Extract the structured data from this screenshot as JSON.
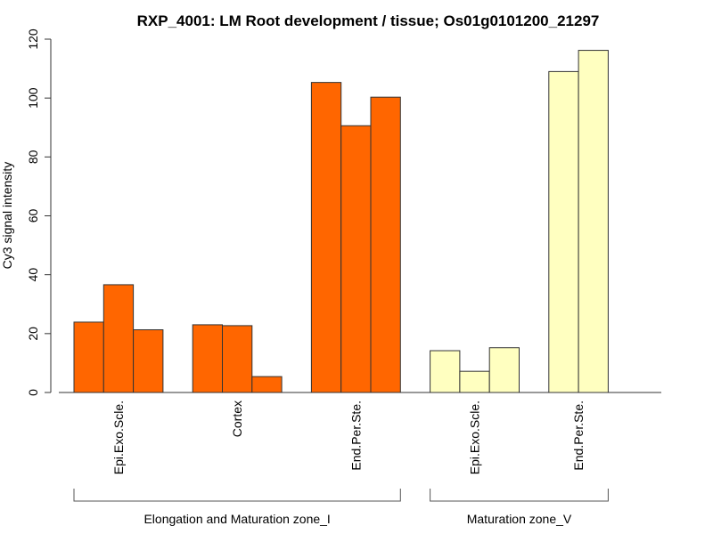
{
  "chart_data": {
    "type": "bar",
    "title": "RXP_4001: LM Root development / tissue; Os01g0101200_21297",
    "xlabel": "",
    "ylabel": "Cy3 signal intensity",
    "ylim": [
      0,
      120
    ],
    "yticks": [
      0,
      20,
      40,
      60,
      80,
      100,
      120
    ],
    "grid": false,
    "legend": "none",
    "categories": [
      {
        "label": "Epi.Exo.Scle.",
        "group": "Elongation and Maturation zone_I",
        "color": "#FF6600",
        "values": [
          23.9,
          36.6,
          21.3
        ]
      },
      {
        "label": "Cortex",
        "group": "Elongation and Maturation zone_I",
        "color": "#FF6600",
        "values": [
          23.0,
          22.7,
          5.4
        ]
      },
      {
        "label": "End.Per.Ste.",
        "group": "Elongation and Maturation zone_I",
        "color": "#FF6600",
        "values": [
          105.3,
          90.6,
          100.3
        ]
      },
      {
        "label": "Epi.Exo.Scle.",
        "group": "Maturation zone_V",
        "color": "#FFFFC0",
        "values": [
          14.2,
          7.2,
          15.2
        ]
      },
      {
        "label": "End.Per.Ste.",
        "group": "Maturation zone_V",
        "color": "#FFFFC0",
        "values": [
          109.0,
          116.2
        ]
      }
    ],
    "groups": [
      {
        "label": "Elongation and Maturation zone_I",
        "categories": [
          0,
          1,
          2
        ]
      },
      {
        "label": "Maturation zone_V",
        "categories": [
          3,
          4
        ]
      }
    ]
  }
}
